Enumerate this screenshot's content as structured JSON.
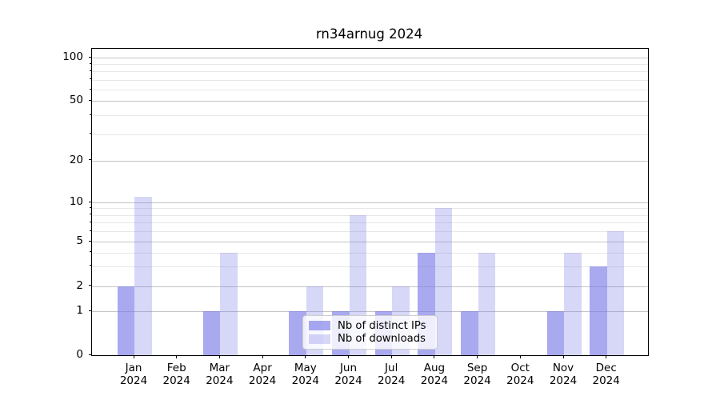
{
  "chart_data": {
    "type": "bar",
    "title": "rn34arnug 2024",
    "categories": [
      "Jan",
      "Feb",
      "Mar",
      "Apr",
      "May",
      "Jun",
      "Jul",
      "Aug",
      "Sep",
      "Oct",
      "Nov",
      "Dec"
    ],
    "year_label": "2024",
    "series": [
      {
        "name": "Nb of distinct IPs",
        "color": "rgba(123,123,232,0.65)",
        "values": [
          2,
          0,
          1,
          0,
          1,
          1,
          1,
          4,
          1,
          0,
          1,
          3
        ]
      },
      {
        "name": "Nb of downloads",
        "color": "rgba(123,123,232,0.30)",
        "values": [
          11,
          0,
          4,
          0,
          2,
          8,
          2,
          9,
          4,
          0,
          4,
          6
        ]
      }
    ],
    "y_axis": {
      "ticks": [
        0,
        1,
        2,
        5,
        10,
        20,
        50,
        100
      ],
      "minor_ticks": [
        3,
        4,
        6,
        7,
        8,
        9,
        30,
        40,
        60,
        70,
        80,
        90
      ],
      "scale": "log-like above 1 with linear 0-1 segment"
    },
    "x_axis": {
      "label_lines": "month over year"
    },
    "legend": {
      "position": "lower center",
      "frame": true
    },
    "grid": "horizontal major and minor gridlines"
  }
}
